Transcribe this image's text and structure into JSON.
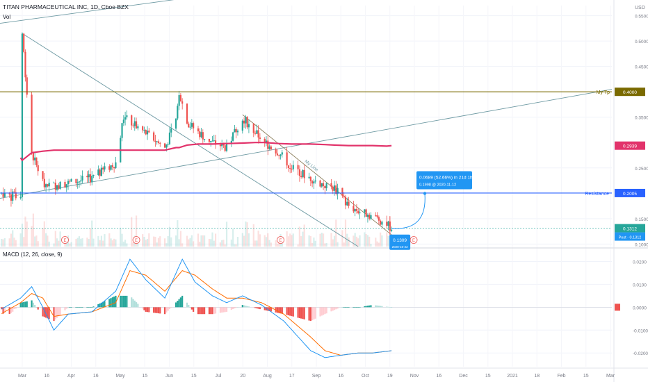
{
  "header": {
    "title": "TITAN PHARMACEUTICAL INC, 1D, Cboe BZX",
    "volume_label": "Vol",
    "currency": "USD"
  },
  "price_axis": {
    "ticks": [
      "0.5500",
      "0.5000",
      "0.4500",
      "0.3500",
      "0.2500",
      "0.1500",
      "0.1000"
    ]
  },
  "price_labels": {
    "my_tp": {
      "text": "My Tp",
      "value": "0.4000",
      "color": "#7a6a00"
    },
    "ma": {
      "value": "0.2939",
      "color": "#e2336b"
    },
    "resistance": {
      "text": "Resistance",
      "value": "0.2005",
      "color": "#2962ff"
    },
    "last": {
      "value": "0.1312",
      "color": "#26a69a"
    },
    "post": {
      "text": "Post",
      "value": "0.1312",
      "color": "#2196f3"
    }
  },
  "annotations": {
    "trend_label": "My Line",
    "projection_line1": "0.0689 (52.66%) in 21d 1h",
    "projection_line2": "0.1998 @ 2020-11-12",
    "current_price": "0.1309",
    "current_date": "2020-10-22",
    "earnings_marker": "E"
  },
  "macd": {
    "title": "MACD (12, 26, close, 9)",
    "ticks": [
      "0.0200",
      "0.0100",
      "0.0000",
      "-0.0100",
      "-0.0200"
    ],
    "colors": {
      "macd": "#2196f3",
      "signal": "#ff6d00",
      "hist_pos": "#26a69a",
      "hist_neg": "#ef5350"
    }
  },
  "time_axis": {
    "labels": [
      "Mar",
      "16",
      "Apr",
      "16",
      "May",
      "15",
      "Jun",
      "15",
      "Jul",
      "20",
      "Aug",
      "17",
      "Sep",
      "16",
      "Oct",
      "19",
      "Nov",
      "16",
      "Dec",
      "15",
      "2021",
      "18",
      "Feb",
      "15",
      "Mar"
    ]
  },
  "chart_data": [
    {
      "type": "line",
      "title": "TITAN PHARMACEUTICAL INC, 1D, Cboe BZX",
      "x": [
        "2020-03-02",
        "2020-03-03",
        "2020-03-09",
        "2020-03-16",
        "2020-03-23",
        "2020-04-01",
        "2020-04-16",
        "2020-05-01",
        "2020-05-06",
        "2020-05-15",
        "2020-06-01",
        "2020-06-08",
        "2020-06-10",
        "2020-06-15",
        "2020-06-22",
        "2020-07-01",
        "2020-07-10",
        "2020-07-20",
        "2020-07-28",
        "2020-08-03",
        "2020-08-12",
        "2020-08-20",
        "2020-09-01",
        "2020-09-10",
        "2020-09-16",
        "2020-09-25",
        "2020-10-01",
        "2020-10-10",
        "2020-10-19",
        "2020-10-22"
      ],
      "series": [
        {
          "values": [
            0.2,
            0.515,
            0.28,
            0.22,
            0.215,
            0.22,
            0.23,
            0.26,
            0.35,
            0.33,
            0.29,
            0.34,
            0.4,
            0.34,
            0.32,
            0.3,
            0.29,
            0.35,
            0.32,
            0.3,
            0.28,
            0.25,
            0.23,
            0.215,
            0.21,
            0.175,
            0.165,
            0.155,
            0.14,
            0.1309
          ]
        }
      ],
      "ma": {
        "values": [
          0.27,
          0.265,
          0.28,
          0.283,
          0.285,
          0.285,
          0.285,
          0.285,
          0.285,
          0.285,
          0.285,
          0.29,
          0.29,
          0.295,
          0.297,
          0.297,
          0.298,
          0.299,
          0.3,
          0.3,
          0.298,
          0.297,
          0.297,
          0.296,
          0.295,
          0.294,
          0.294,
          0.294,
          0.293,
          0.2939
        ]
      },
      "hlines": [
        0.4,
        0.2005
      ],
      "ylim": [
        0.095,
        0.57
      ],
      "xlim": [
        "2020-02-18",
        "2021-03-10"
      ],
      "grid": true
    },
    {
      "type": "bar",
      "title": "MACD (12, 26, close, 9)",
      "x": [
        "2020-03-02",
        "2020-03-09",
        "2020-03-16",
        "2020-03-23",
        "2020-04-01",
        "2020-04-16",
        "2020-05-01",
        "2020-05-10",
        "2020-05-20",
        "2020-06-01",
        "2020-06-12",
        "2020-06-20",
        "2020-07-01",
        "2020-07-10",
        "2020-07-20",
        "2020-08-01",
        "2020-08-15",
        "2020-09-01",
        "2020-09-10",
        "2020-09-20",
        "2020-10-01",
        "2020-10-10",
        "2020-10-22"
      ],
      "series": [
        {
          "name": "MACD",
          "values": [
            0.004,
            0.009,
            0.0,
            -0.01,
            -0.003,
            -0.002,
            0.007,
            0.021,
            0.012,
            0.004,
            0.021,
            0.011,
            0.005,
            0.002,
            0.005,
            0.001,
            -0.006,
            -0.019,
            -0.022,
            -0.021,
            -0.02,
            -0.02,
            -0.019
          ]
        },
        {
          "name": "Signal",
          "values": [
            0.002,
            0.006,
            0.004,
            -0.004,
            -0.003,
            -0.002,
            0.002,
            0.016,
            0.014,
            0.007,
            0.016,
            0.014,
            0.008,
            0.004,
            0.004,
            0.002,
            -0.003,
            -0.013,
            -0.019,
            -0.021,
            -0.02,
            -0.02,
            -0.019
          ]
        },
        {
          "name": "Histogram",
          "values": [
            0.002,
            0.003,
            -0.004,
            -0.006,
            0.0,
            0.0,
            0.005,
            0.005,
            -0.002,
            -0.003,
            0.005,
            -0.003,
            -0.003,
            -0.002,
            0.001,
            -0.001,
            -0.003,
            -0.006,
            -0.003,
            0.0,
            0.0,
            0.001,
            0.0
          ]
        }
      ],
      "ylim": [
        -0.026,
        0.025
      ]
    }
  ]
}
